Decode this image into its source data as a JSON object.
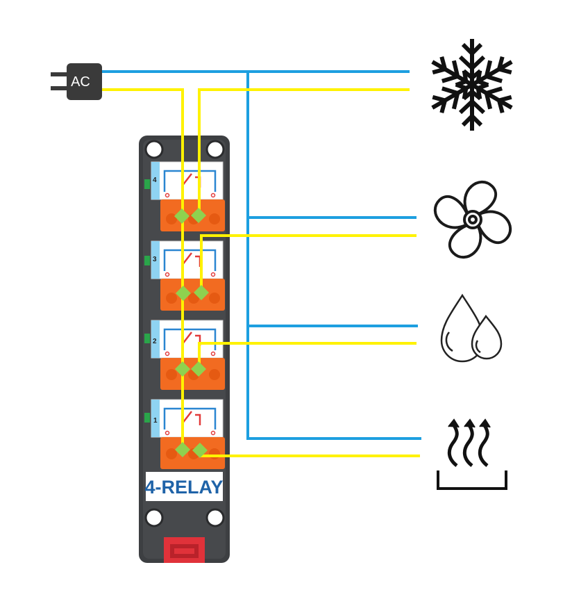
{
  "power_source": {
    "label": "AC"
  },
  "module": {
    "name": "4-RELAY"
  },
  "relays": [
    {
      "channel": "4",
      "load": "cooling"
    },
    {
      "channel": "3",
      "load": "fan"
    },
    {
      "channel": "2",
      "load": "humidifier"
    },
    {
      "channel": "1",
      "load": "heater"
    }
  ],
  "loads": [
    {
      "name": "snowflake-icon"
    },
    {
      "name": "fan-icon"
    },
    {
      "name": "water-drops-icon"
    },
    {
      "name": "heat-icon"
    }
  ],
  "wires": {
    "neutral_color": "#1d9fe0",
    "live_color": "#fff200",
    "junction_color": "#8fd14f"
  },
  "colors": {
    "module_body": "#3d3f42",
    "terminal": "#f26b21",
    "relay_card": "#ffffff",
    "relay_line": "#2a86d1",
    "relay_accent": "#e23b3b"
  }
}
